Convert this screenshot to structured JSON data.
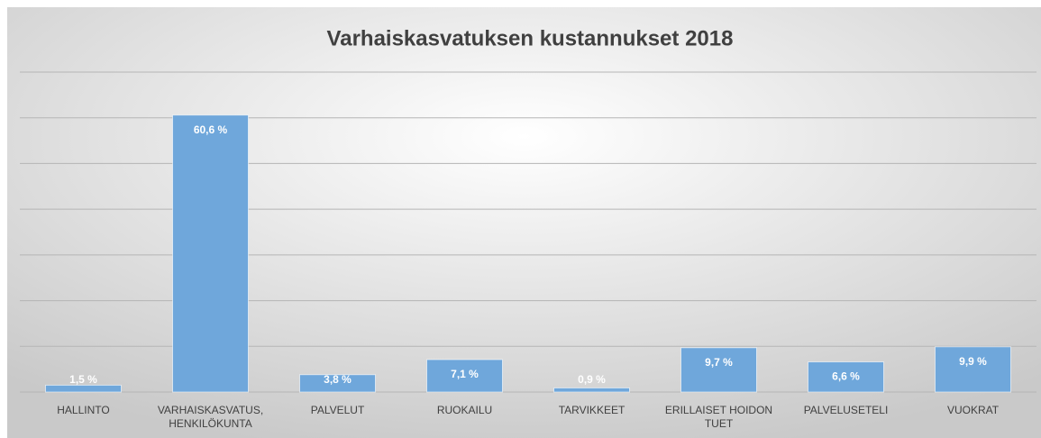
{
  "chart_data": {
    "type": "bar",
    "title": "Varhaiskasvatuksen kustannukset 2018",
    "categories": [
      "HALLINTO",
      "VARHAISKASVATUS, HENKILÖKUNTA",
      "PALVELUT",
      "RUOKAILU",
      "TARVIKKEET",
      "ERILLAISET HOIDON TUET",
      "PALVELUSETELI",
      "VUOKRAT"
    ],
    "values": [
      1.5,
      60.6,
      3.8,
      7.1,
      0.9,
      9.7,
      6.6,
      9.9
    ],
    "value_labels": [
      "1,5 %",
      "60,6 %",
      "3,8 %",
      "7,1 %",
      "0,9 %",
      "9,7 %",
      "6,6 %",
      "9,9 %"
    ],
    "color": "#6fa7db",
    "ylim": [
      0,
      70
    ],
    "yticks": [
      0,
      10,
      20,
      30,
      40,
      50,
      60,
      70
    ],
    "grid": true
  }
}
